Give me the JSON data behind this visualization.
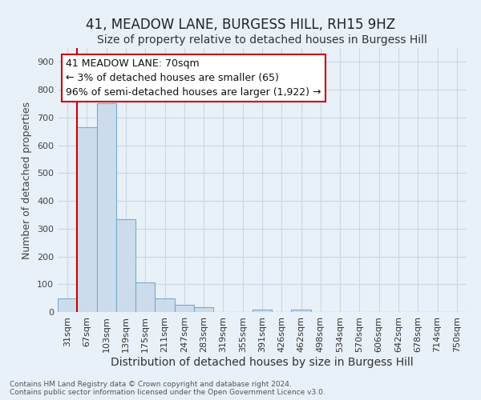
{
  "title": "41, MEADOW LANE, BURGESS HILL, RH15 9HZ",
  "subtitle": "Size of property relative to detached houses in Burgess Hill",
  "xlabel": "Distribution of detached houses by size in Burgess Hill",
  "ylabel": "Number of detached properties",
  "footer_line1": "Contains HM Land Registry data © Crown copyright and database right 2024.",
  "footer_line2": "Contains public sector information licensed under the Open Government Licence v3.0.",
  "bin_labels": [
    "31sqm",
    "67sqm",
    "103sqm",
    "139sqm",
    "175sqm",
    "211sqm",
    "247sqm",
    "283sqm",
    "319sqm",
    "355sqm",
    "391sqm",
    "426sqm",
    "462sqm",
    "498sqm",
    "534sqm",
    "570sqm",
    "606sqm",
    "642sqm",
    "678sqm",
    "714sqm",
    "750sqm"
  ],
  "bar_heights": [
    50,
    665,
    750,
    335,
    107,
    50,
    25,
    17,
    0,
    0,
    8,
    0,
    8,
    0,
    0,
    0,
    0,
    0,
    0,
    0,
    0
  ],
  "bar_color": "#cddcec",
  "bar_edge_color": "#7aaac8",
  "vline_color": "#cc0000",
  "ylim": [
    0,
    950
  ],
  "yticks": [
    0,
    100,
    200,
    300,
    400,
    500,
    600,
    700,
    800,
    900
  ],
  "annotation_line1": "41 MEADOW LANE: 70sqm",
  "annotation_line2": "← 3% of detached houses are smaller (65)",
  "annotation_line3": "96% of semi-detached houses are larger (1,922) →",
  "annotation_box_color": "#ffffff",
  "annotation_box_edge_color": "#cc0000",
  "bg_color": "#e8f0f8",
  "grid_color": "#c8d8e8",
  "title_fontsize": 12,
  "subtitle_fontsize": 10,
  "xlabel_fontsize": 10,
  "ylabel_fontsize": 9,
  "tick_fontsize": 8,
  "annotation_fontsize": 9,
  "footer_fontsize": 6.5
}
